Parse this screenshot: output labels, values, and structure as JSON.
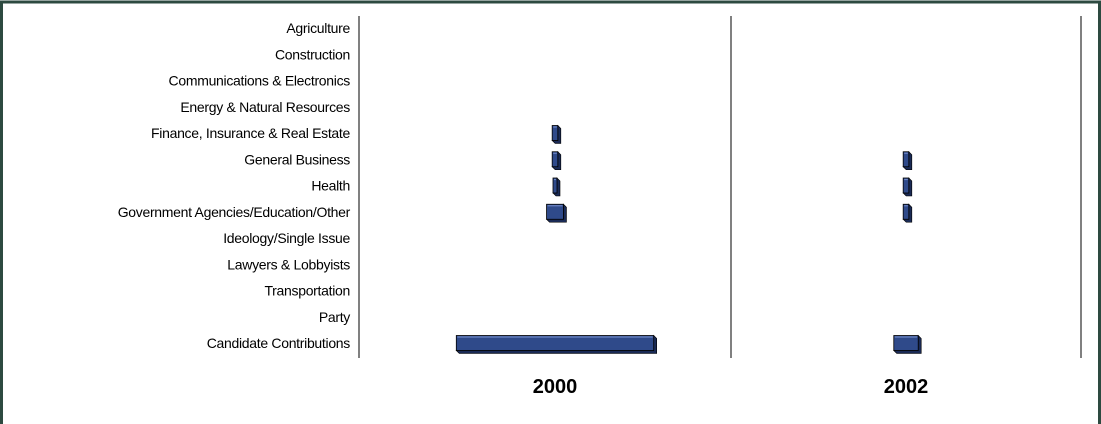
{
  "chart_data": {
    "type": "bar",
    "orientation": "horizontal",
    "categories": [
      "Agriculture",
      "Construction",
      "Communications & Electronics",
      "Energy & Natural Resources",
      "Finance, Insurance & Real Estate",
      "General Business",
      "Health",
      "Government Agencies/Education/Other",
      "Ideology/Single Issue",
      "Lawyers & Lobbyists",
      "Transportation",
      "Party",
      "Candidate Contributions"
    ],
    "panels": [
      {
        "label": "2000",
        "values": [
          0,
          0,
          0,
          0,
          0.3,
          0.3,
          0.2,
          0.9,
          0,
          0,
          0,
          0,
          10.5
        ]
      },
      {
        "label": "2002",
        "values": [
          0,
          0,
          0,
          0,
          0,
          0.3,
          0.3,
          0.3,
          0,
          0,
          0,
          0,
          1.3
        ]
      }
    ],
    "title": "",
    "xlabel": "",
    "ylabel": "",
    "bar_color": "#2f4a8a",
    "bar_side_color": "#1a2a55",
    "bar_top_color": "#6d86c4"
  }
}
